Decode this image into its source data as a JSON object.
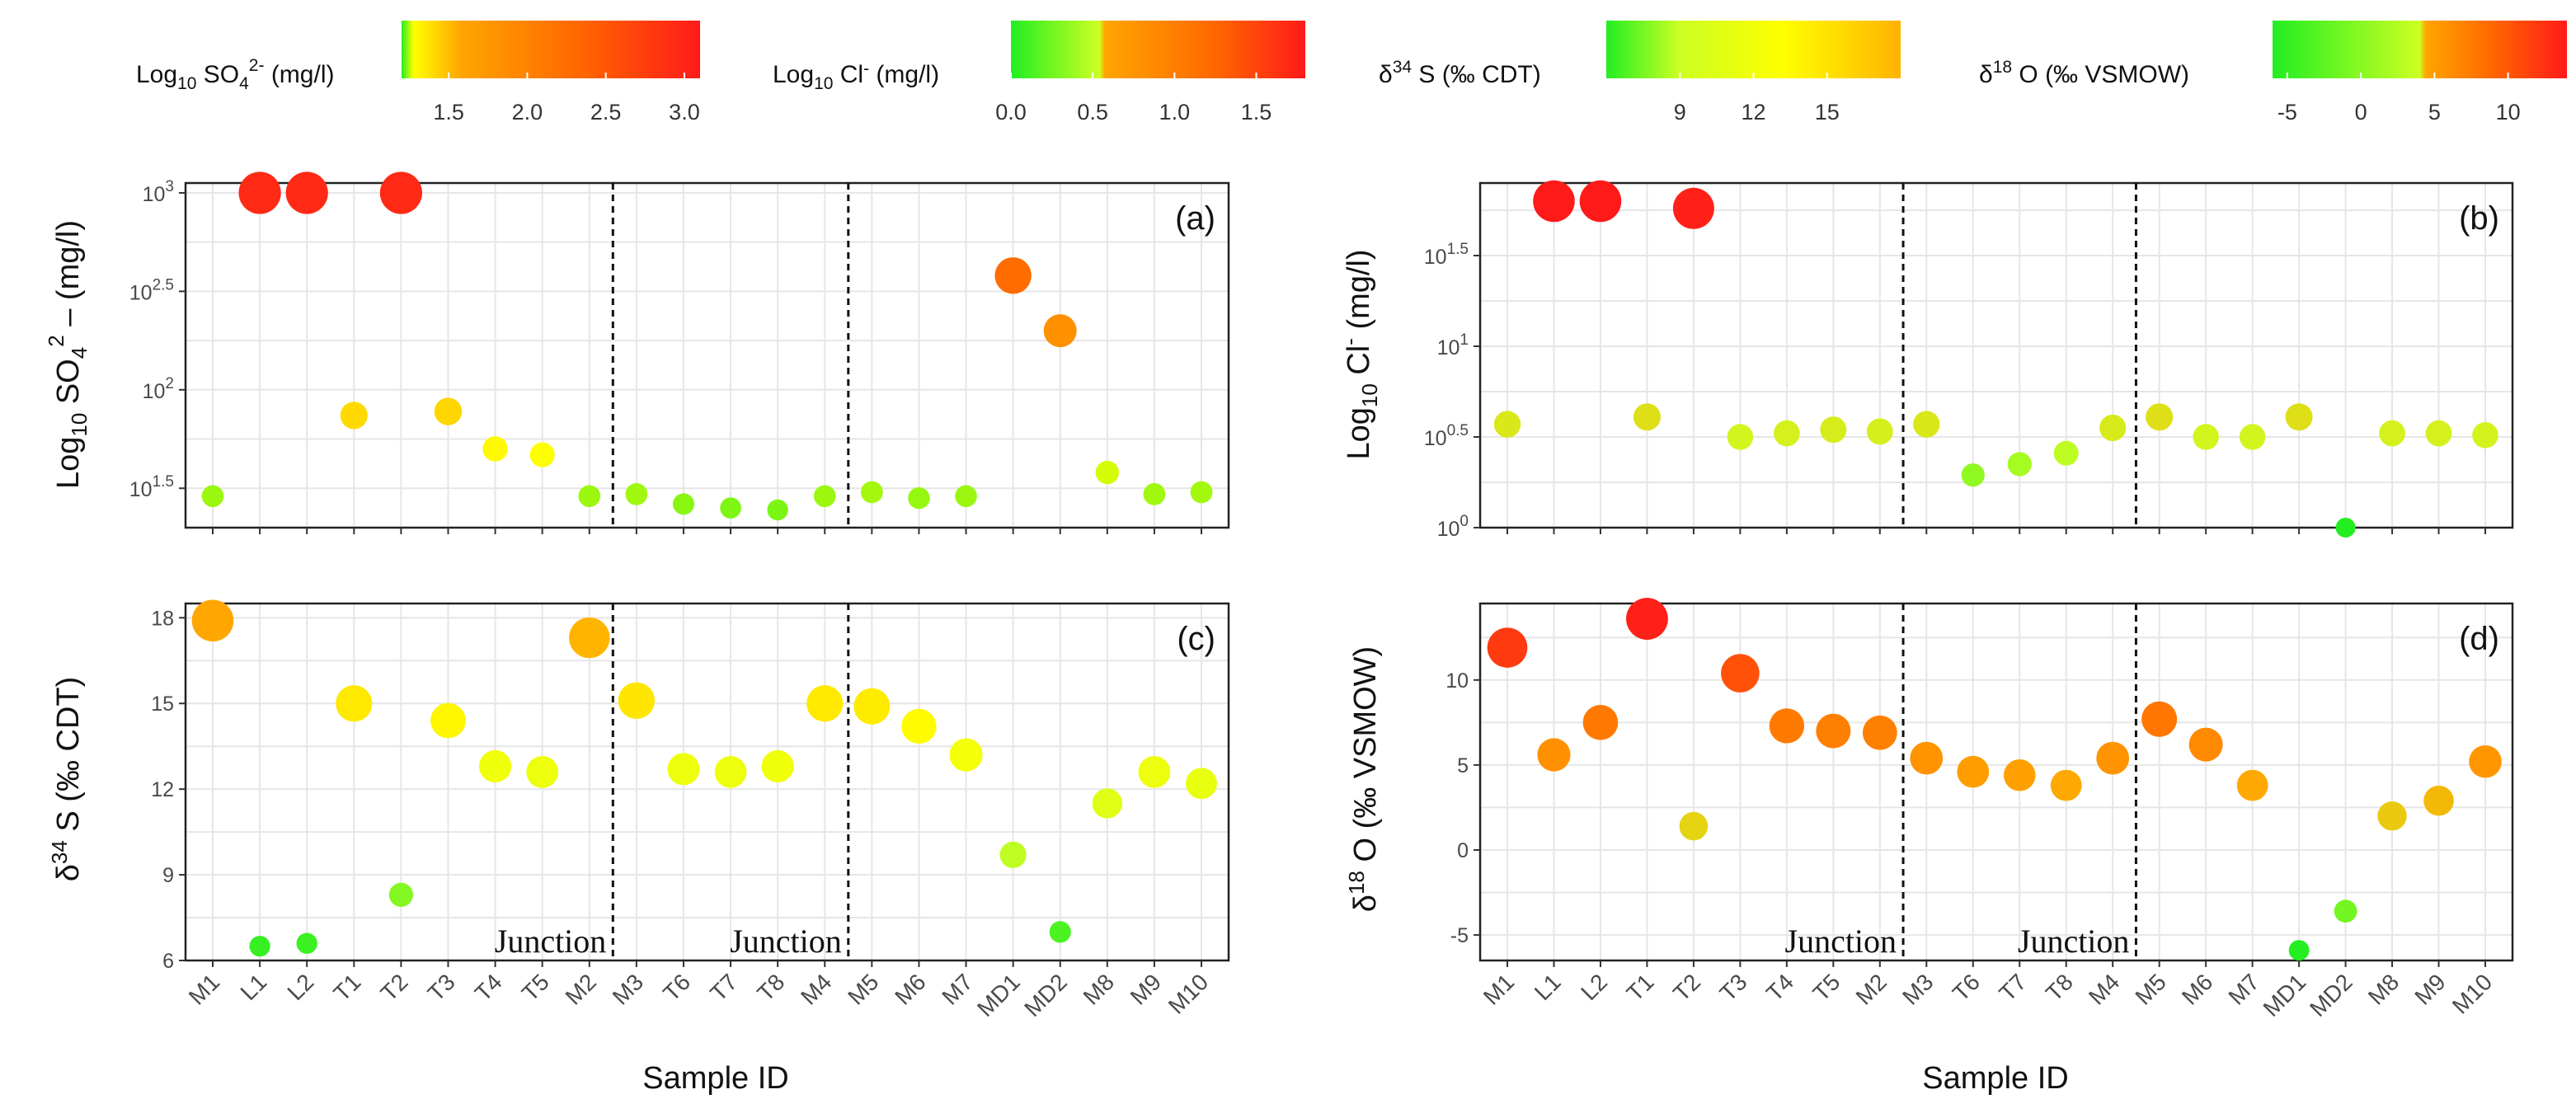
{
  "chart_data": {
    "type": "scatter",
    "x_axis_title": "Sample ID",
    "samples": [
      "M1",
      "L1",
      "L2",
      "T1",
      "T2",
      "T3",
      "T4",
      "T5",
      "M2",
      "M3",
      "T6",
      "T7",
      "T8",
      "M4",
      "M5",
      "M6",
      "M7",
      "MD1",
      "MD2",
      "M8",
      "M9",
      "M10"
    ],
    "junction_label": "Junction",
    "junction_lines_after": [
      "M2",
      "M4"
    ],
    "colorbars": [
      {
        "id": "cb-so4",
        "title": "Log10 SO4 2- (mg/l)",
        "range": [
          1.2,
          3.1
        ],
        "ticks": [
          "1.5",
          "2.0",
          "2.5",
          "3.0"
        ],
        "tick_values": [
          1.5,
          2.0,
          2.5,
          3.0
        ],
        "colors": [
          "#22ee22",
          "#ffff00",
          "#ffa500",
          "#ff6600",
          "#ff1a1a"
        ]
      },
      {
        "id": "cb-cl",
        "title": "Log10 Cl- (mg/l)",
        "range": [
          0,
          1.8
        ],
        "ticks": [
          "0.0",
          "0.5",
          "1.0",
          "1.5"
        ],
        "tick_values": [
          0,
          0.5,
          1.0,
          1.5
        ],
        "colors": [
          "#22ee22",
          "#ccff22",
          "#ffa500",
          "#ff6600",
          "#ff1a1a"
        ]
      },
      {
        "id": "cb-s34",
        "title": "δ34 S (‰ CDT)",
        "range": [
          6,
          18
        ],
        "ticks": [
          "9",
          "12",
          "15"
        ],
        "tick_values": [
          9,
          12,
          15
        ],
        "colors": [
          "#22ee22",
          "#ccff22",
          "#ffff00",
          "#ffa500"
        ]
      },
      {
        "id": "cb-o18",
        "title": "δ18 O (‰ VSMOW)",
        "range": [
          -6,
          14
        ],
        "ticks": [
          "-5",
          "0",
          "5",
          "10"
        ],
        "tick_values": [
          -5,
          0,
          5,
          10
        ],
        "colors": [
          "#22ee22",
          "#ccff22",
          "#ffa500",
          "#ff6600",
          "#ff1a1a"
        ]
      }
    ],
    "panels": [
      {
        "id": "a",
        "label": "(a)",
        "ylabel": "Log10 SO4 2- (mg/l)",
        "ylim": [
          1.3,
          3.05
        ],
        "yticks": [
          1.5,
          2.0,
          2.5,
          3.0
        ],
        "ytick_labels": [
          "1.5",
          "2",
          "2.5",
          "3"
        ],
        "values": [
          1.46,
          3.0,
          3.0,
          1.87,
          3.0,
          1.89,
          1.7,
          1.67,
          1.46,
          1.47,
          1.42,
          1.4,
          1.39,
          1.46,
          1.48,
          1.45,
          1.46,
          2.58,
          2.3,
          1.58,
          1.47,
          1.48
        ]
      },
      {
        "id": "b",
        "label": "(b)",
        "ylabel": "Log10 Cl- (mg/l)",
        "ylim": [
          0.0,
          1.9
        ],
        "yticks": [
          0.0,
          0.5,
          1.0,
          1.5
        ],
        "ytick_labels": [
          "0",
          "0.5",
          "1",
          "1.5"
        ],
        "values": [
          0.57,
          1.8,
          1.8,
          0.61,
          1.76,
          0.5,
          0.52,
          0.54,
          0.53,
          0.57,
          0.29,
          0.35,
          0.41,
          0.55,
          0.61,
          0.5,
          0.5,
          0.61,
          0.0,
          0.52,
          0.52,
          0.51
        ]
      },
      {
        "id": "c",
        "label": "(c)",
        "ylabel": "δ34 S (‰ CDT)",
        "ylim": [
          6.0,
          18.5
        ],
        "yticks": [
          6,
          9,
          12,
          15,
          18
        ],
        "ytick_labels": [
          "6",
          "9",
          "12",
          "15",
          "18"
        ],
        "values": [
          17.9,
          6.5,
          6.6,
          15.0,
          8.3,
          14.4,
          12.8,
          12.6,
          17.3,
          15.1,
          12.7,
          12.6,
          12.8,
          15.0,
          14.9,
          14.2,
          13.2,
          9.7,
          7.0,
          11.5,
          12.6,
          12.2
        ]
      },
      {
        "id": "d",
        "label": "(d)",
        "ylabel": "δ18 O (‰ VSMOW)",
        "ylim": [
          -6.5,
          14.5
        ],
        "yticks": [
          -5,
          0,
          5,
          10
        ],
        "ytick_labels": [
          "-5",
          "0",
          "5",
          "10"
        ],
        "values": [
          11.9,
          5.6,
          7.5,
          13.6,
          1.4,
          10.4,
          7.3,
          7.0,
          6.9,
          5.4,
          4.6,
          4.4,
          3.8,
          5.4,
          7.7,
          6.2,
          3.8,
          -5.9,
          -3.6,
          2.0,
          2.9,
          5.2
        ]
      }
    ]
  }
}
